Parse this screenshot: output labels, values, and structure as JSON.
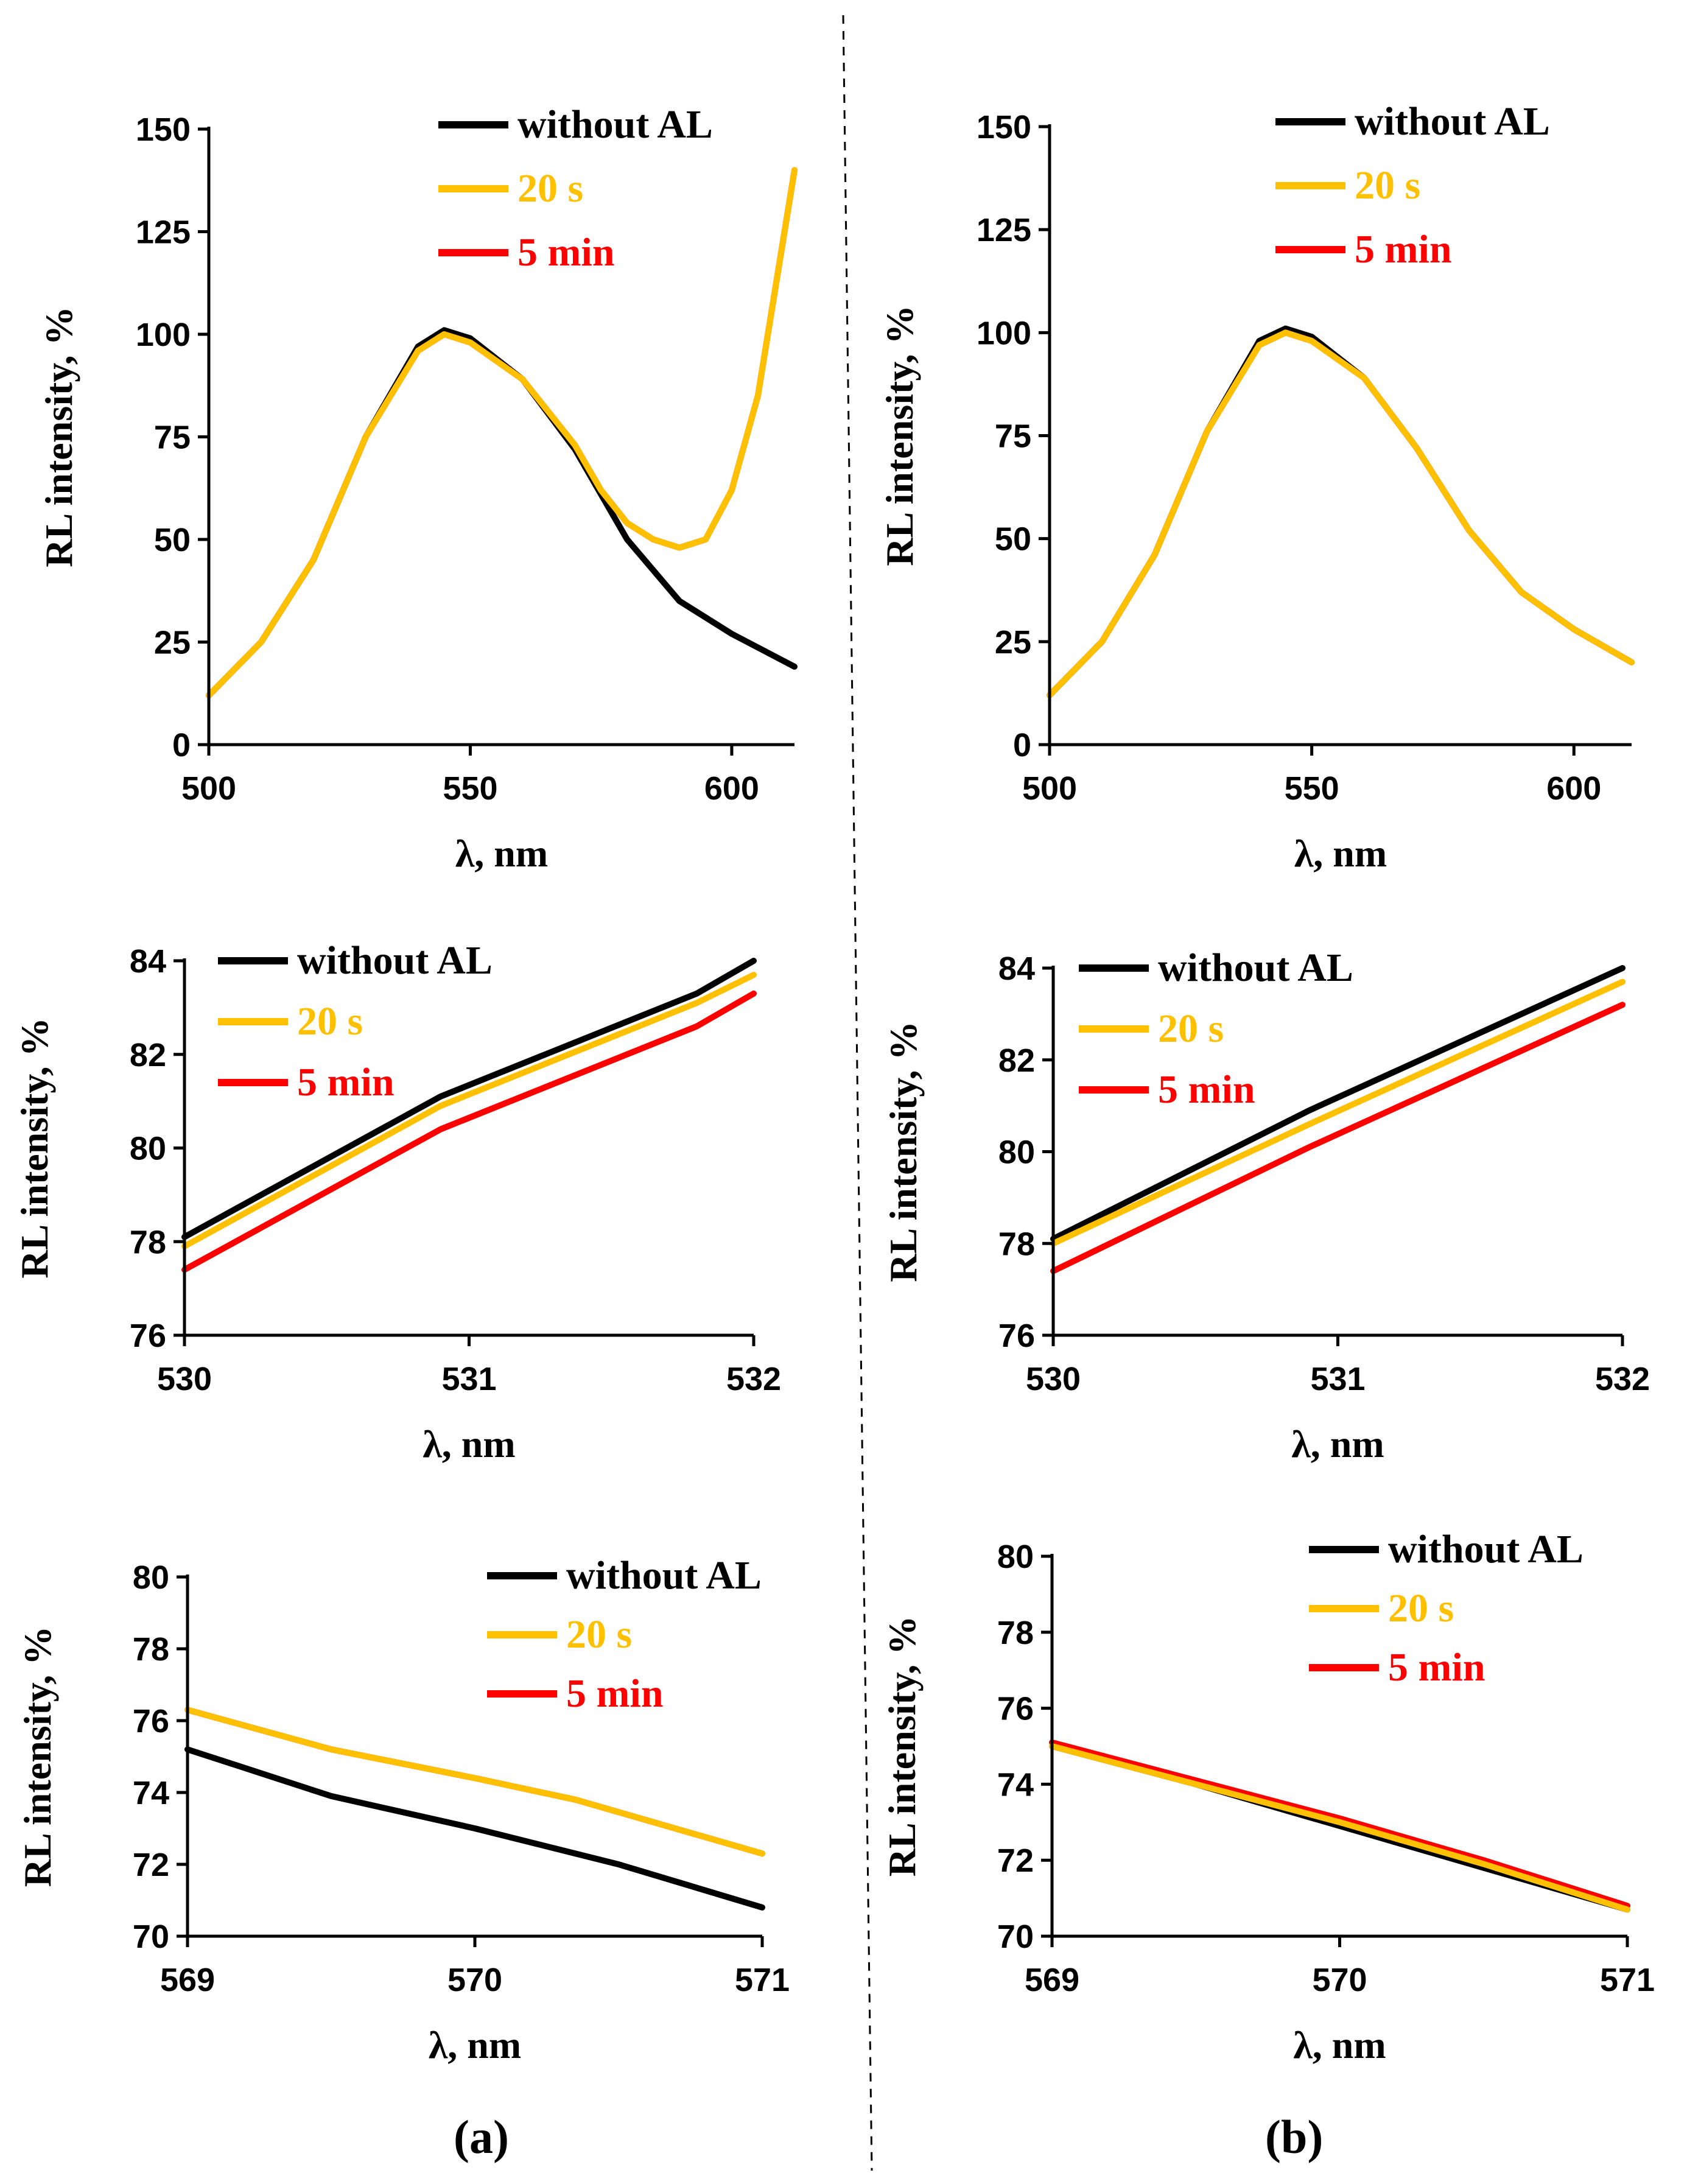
{
  "captions": {
    "a": "(a)",
    "b": "(b)"
  },
  "colors": {
    "without_al": "#000000",
    "s20": "#FFC000",
    "min5": "#FF0000",
    "axis": "#000000"
  },
  "chart_data": [
    {
      "id": "a-top",
      "type": "line",
      "xlabel": "λ, nm",
      "ylabel": "RL intensity, %",
      "xlim": [
        500,
        612
      ],
      "ylim": [
        0,
        150
      ],
      "xticks": [
        500,
        550,
        600
      ],
      "yticks": [
        0,
        25,
        50,
        75,
        100,
        125,
        150
      ],
      "legend": [
        "without AL",
        "20 s",
        "5 min"
      ],
      "series": [
        {
          "name": "without AL",
          "x": [
            500,
            510,
            520,
            530,
            540,
            545,
            550,
            560,
            570,
            580,
            590,
            600,
            612
          ],
          "values": [
            12,
            25,
            45,
            75,
            97,
            101,
            99,
            89,
            72,
            50,
            35,
            27,
            19
          ]
        },
        {
          "name": "20 s",
          "x": [
            500,
            510,
            520,
            530,
            540,
            545,
            550,
            560,
            570,
            575,
            580,
            585,
            590,
            595,
            600,
            605,
            612
          ],
          "values": [
            12,
            25,
            45,
            75,
            96,
            100,
            98,
            89,
            73,
            62,
            54,
            50,
            48,
            50,
            62,
            85,
            140
          ]
        },
        {
          "name": "5 min",
          "x": [
            500,
            510,
            520,
            530,
            540,
            545,
            550,
            560,
            570,
            575,
            580,
            585,
            590,
            595,
            600,
            605,
            612
          ],
          "values": [
            12,
            25,
            45,
            75,
            96,
            100,
            98,
            89,
            73,
            62,
            54,
            50,
            48,
            50,
            62,
            85,
            140
          ]
        }
      ]
    },
    {
      "id": "b-top",
      "type": "line",
      "xlabel": "λ, nm",
      "ylabel": "RL intensity, %",
      "xlim": [
        500,
        611
      ],
      "ylim": [
        0,
        150
      ],
      "xticks": [
        500,
        550,
        600
      ],
      "yticks": [
        0,
        25,
        50,
        75,
        100,
        125,
        150
      ],
      "legend": [
        "without AL",
        "20 s",
        "5 min"
      ],
      "series": [
        {
          "name": "without AL",
          "x": [
            500,
            510,
            520,
            530,
            540,
            545,
            550,
            560,
            570,
            580,
            590,
            600,
            611
          ],
          "values": [
            12,
            25,
            46,
            76,
            98,
            101,
            99,
            89,
            72,
            52,
            37,
            28,
            20
          ]
        },
        {
          "name": "20 s",
          "x": [
            500,
            510,
            520,
            530,
            540,
            545,
            550,
            560,
            570,
            580,
            590,
            600,
            611
          ],
          "values": [
            12,
            25,
            46,
            76,
            97,
            100,
            98,
            89,
            72,
            52,
            37,
            28,
            20
          ]
        },
        {
          "name": "5 min",
          "x": [
            500,
            510,
            520,
            530,
            540,
            545,
            550,
            560,
            570,
            580,
            590,
            600,
            611
          ],
          "values": [
            12,
            25,
            46,
            76,
            97,
            100,
            98,
            89,
            72,
            52,
            37,
            28,
            20
          ]
        }
      ]
    },
    {
      "id": "a-mid",
      "type": "line",
      "xlabel": "λ, nm",
      "ylabel": "RL intensity, %",
      "xlim": [
        530,
        532
      ],
      "ylim": [
        76,
        84
      ],
      "xticks": [
        530,
        531,
        532
      ],
      "yticks": [
        76,
        78,
        80,
        82,
        84
      ],
      "legend": [
        "without AL",
        "20 s",
        "5 min"
      ],
      "series": [
        {
          "name": "without AL",
          "x": [
            530,
            530.9,
            531.8,
            532
          ],
          "values": [
            78.1,
            81.1,
            83.3,
            84.0
          ]
        },
        {
          "name": "20 s",
          "x": [
            530,
            530.9,
            531.8,
            532
          ],
          "values": [
            77.9,
            80.9,
            83.1,
            83.7
          ]
        },
        {
          "name": "5 min",
          "x": [
            530,
            530.9,
            531.8,
            532
          ],
          "values": [
            77.4,
            80.4,
            82.6,
            83.3
          ]
        }
      ]
    },
    {
      "id": "b-mid",
      "type": "line",
      "xlabel": "λ, nm",
      "ylabel": "RL intensity, %",
      "xlim": [
        530,
        532
      ],
      "ylim": [
        76,
        84
      ],
      "xticks": [
        530,
        531,
        532
      ],
      "yticks": [
        76,
        78,
        80,
        82,
        84
      ],
      "legend": [
        "without AL",
        "20 s",
        "5 min"
      ],
      "series": [
        {
          "name": "without AL",
          "x": [
            530,
            530.9,
            532
          ],
          "values": [
            78.1,
            80.9,
            84.0
          ]
        },
        {
          "name": "20 s",
          "x": [
            530,
            530.9,
            532
          ],
          "values": [
            78.0,
            80.6,
            83.7
          ]
        },
        {
          "name": "5 min",
          "x": [
            530,
            530.9,
            532
          ],
          "values": [
            77.4,
            80.1,
            83.2
          ]
        }
      ]
    },
    {
      "id": "a-bot",
      "type": "line",
      "xlabel": "λ, nm",
      "ylabel": "RL intensity, %",
      "xlim": [
        569,
        571
      ],
      "ylim": [
        70,
        80
      ],
      "xticks": [
        569,
        570,
        571
      ],
      "yticks": [
        70,
        72,
        74,
        76,
        78,
        80
      ],
      "legend": [
        "without AL",
        "20 s",
        "5 min"
      ],
      "series": [
        {
          "name": "without AL",
          "x": [
            569,
            569.5,
            570,
            570.5,
            571
          ],
          "values": [
            75.2,
            73.9,
            73.0,
            72.0,
            70.8
          ]
        },
        {
          "name": "20 s",
          "x": [
            569,
            569.5,
            570,
            570.35,
            571
          ],
          "values": [
            76.3,
            75.2,
            74.4,
            73.8,
            72.3
          ]
        },
        {
          "name": "5 min",
          "x": [
            569,
            569.5,
            570,
            570.35,
            571
          ],
          "values": [
            76.3,
            75.2,
            74.4,
            73.8,
            72.3
          ]
        }
      ]
    },
    {
      "id": "b-bot",
      "type": "line",
      "xlabel": "λ, nm",
      "ylabel": "RL intensity, %",
      "xlim": [
        569,
        571
      ],
      "ylim": [
        70,
        80
      ],
      "xticks": [
        569,
        570,
        571
      ],
      "yticks": [
        70,
        72,
        74,
        76,
        78,
        80
      ],
      "legend": [
        "without AL",
        "20 s",
        "5 min"
      ],
      "series": [
        {
          "name": "without AL",
          "x": [
            569,
            569.5,
            570,
            570.5,
            571
          ],
          "values": [
            75.0,
            74.0,
            72.9,
            71.8,
            70.7
          ]
        },
        {
          "name": "20 s",
          "x": [
            569,
            569.5,
            570,
            570.5,
            571
          ],
          "values": [
            75.0,
            74.0,
            73.0,
            71.9,
            70.7
          ]
        },
        {
          "name": "5 min",
          "x": [
            569,
            569.5,
            570,
            570.5,
            571
          ],
          "values": [
            75.1,
            74.1,
            73.1,
            72.0,
            70.8
          ]
        }
      ]
    }
  ]
}
